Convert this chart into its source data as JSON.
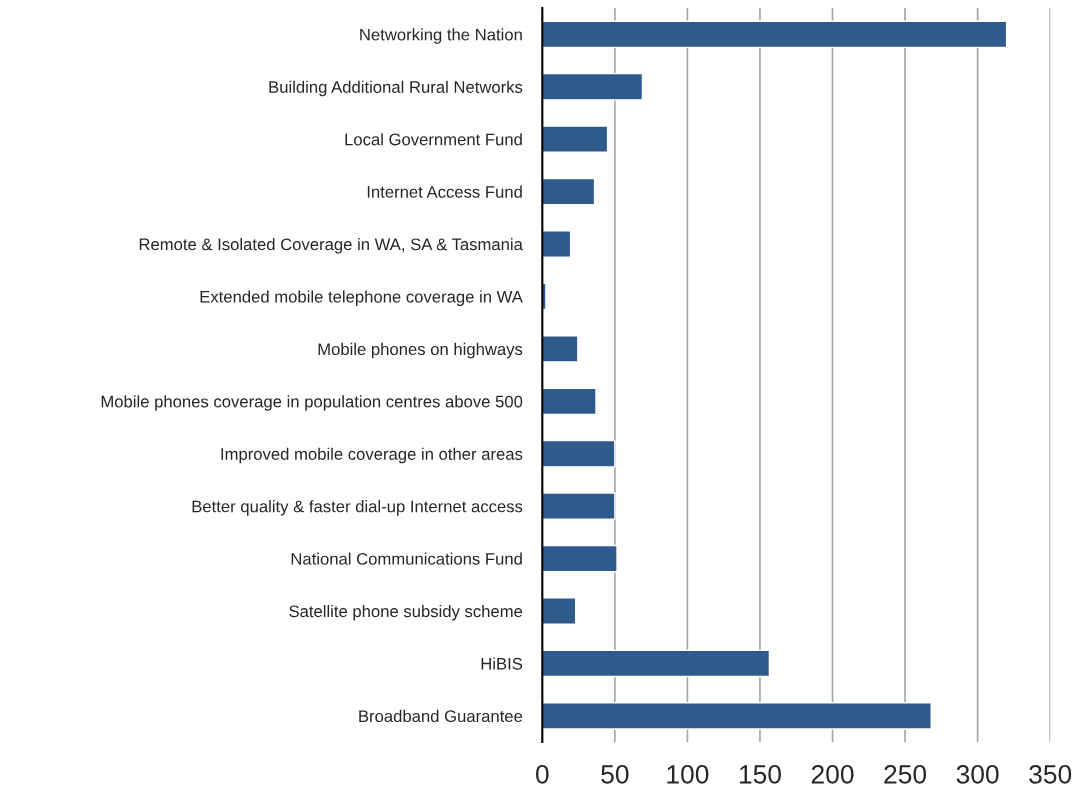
{
  "chart_data": {
    "type": "bar",
    "orientation": "horizontal",
    "categories": [
      "Networking the Nation",
      "Building Additional Rural Networks",
      "Local Government Fund",
      "Internet Access Fund",
      "Remote & Isolated Coverage in WA, SA & Tasmania",
      "Extended mobile telephone coverage in WA",
      "Mobile phones on highways",
      "Mobile phones coverage in population centres above 500",
      "Improved mobile coverage in other areas",
      "Better quality & faster dial-up Internet access",
      "National Communications Fund",
      "Satellite phone subsidy scheme",
      "HiBIS",
      "Broadband Guarantee"
    ],
    "values": [
      320,
      69,
      45,
      36,
      19.5,
      2.5,
      24.5,
      37,
      50,
      50,
      51.5,
      23,
      156.5,
      268
    ],
    "color": "#2e5a8c",
    "xlim": [
      0,
      350
    ],
    "xticks": [
      0,
      50,
      100,
      150,
      200,
      250,
      300,
      350
    ],
    "grid": "x",
    "legend": false
  }
}
